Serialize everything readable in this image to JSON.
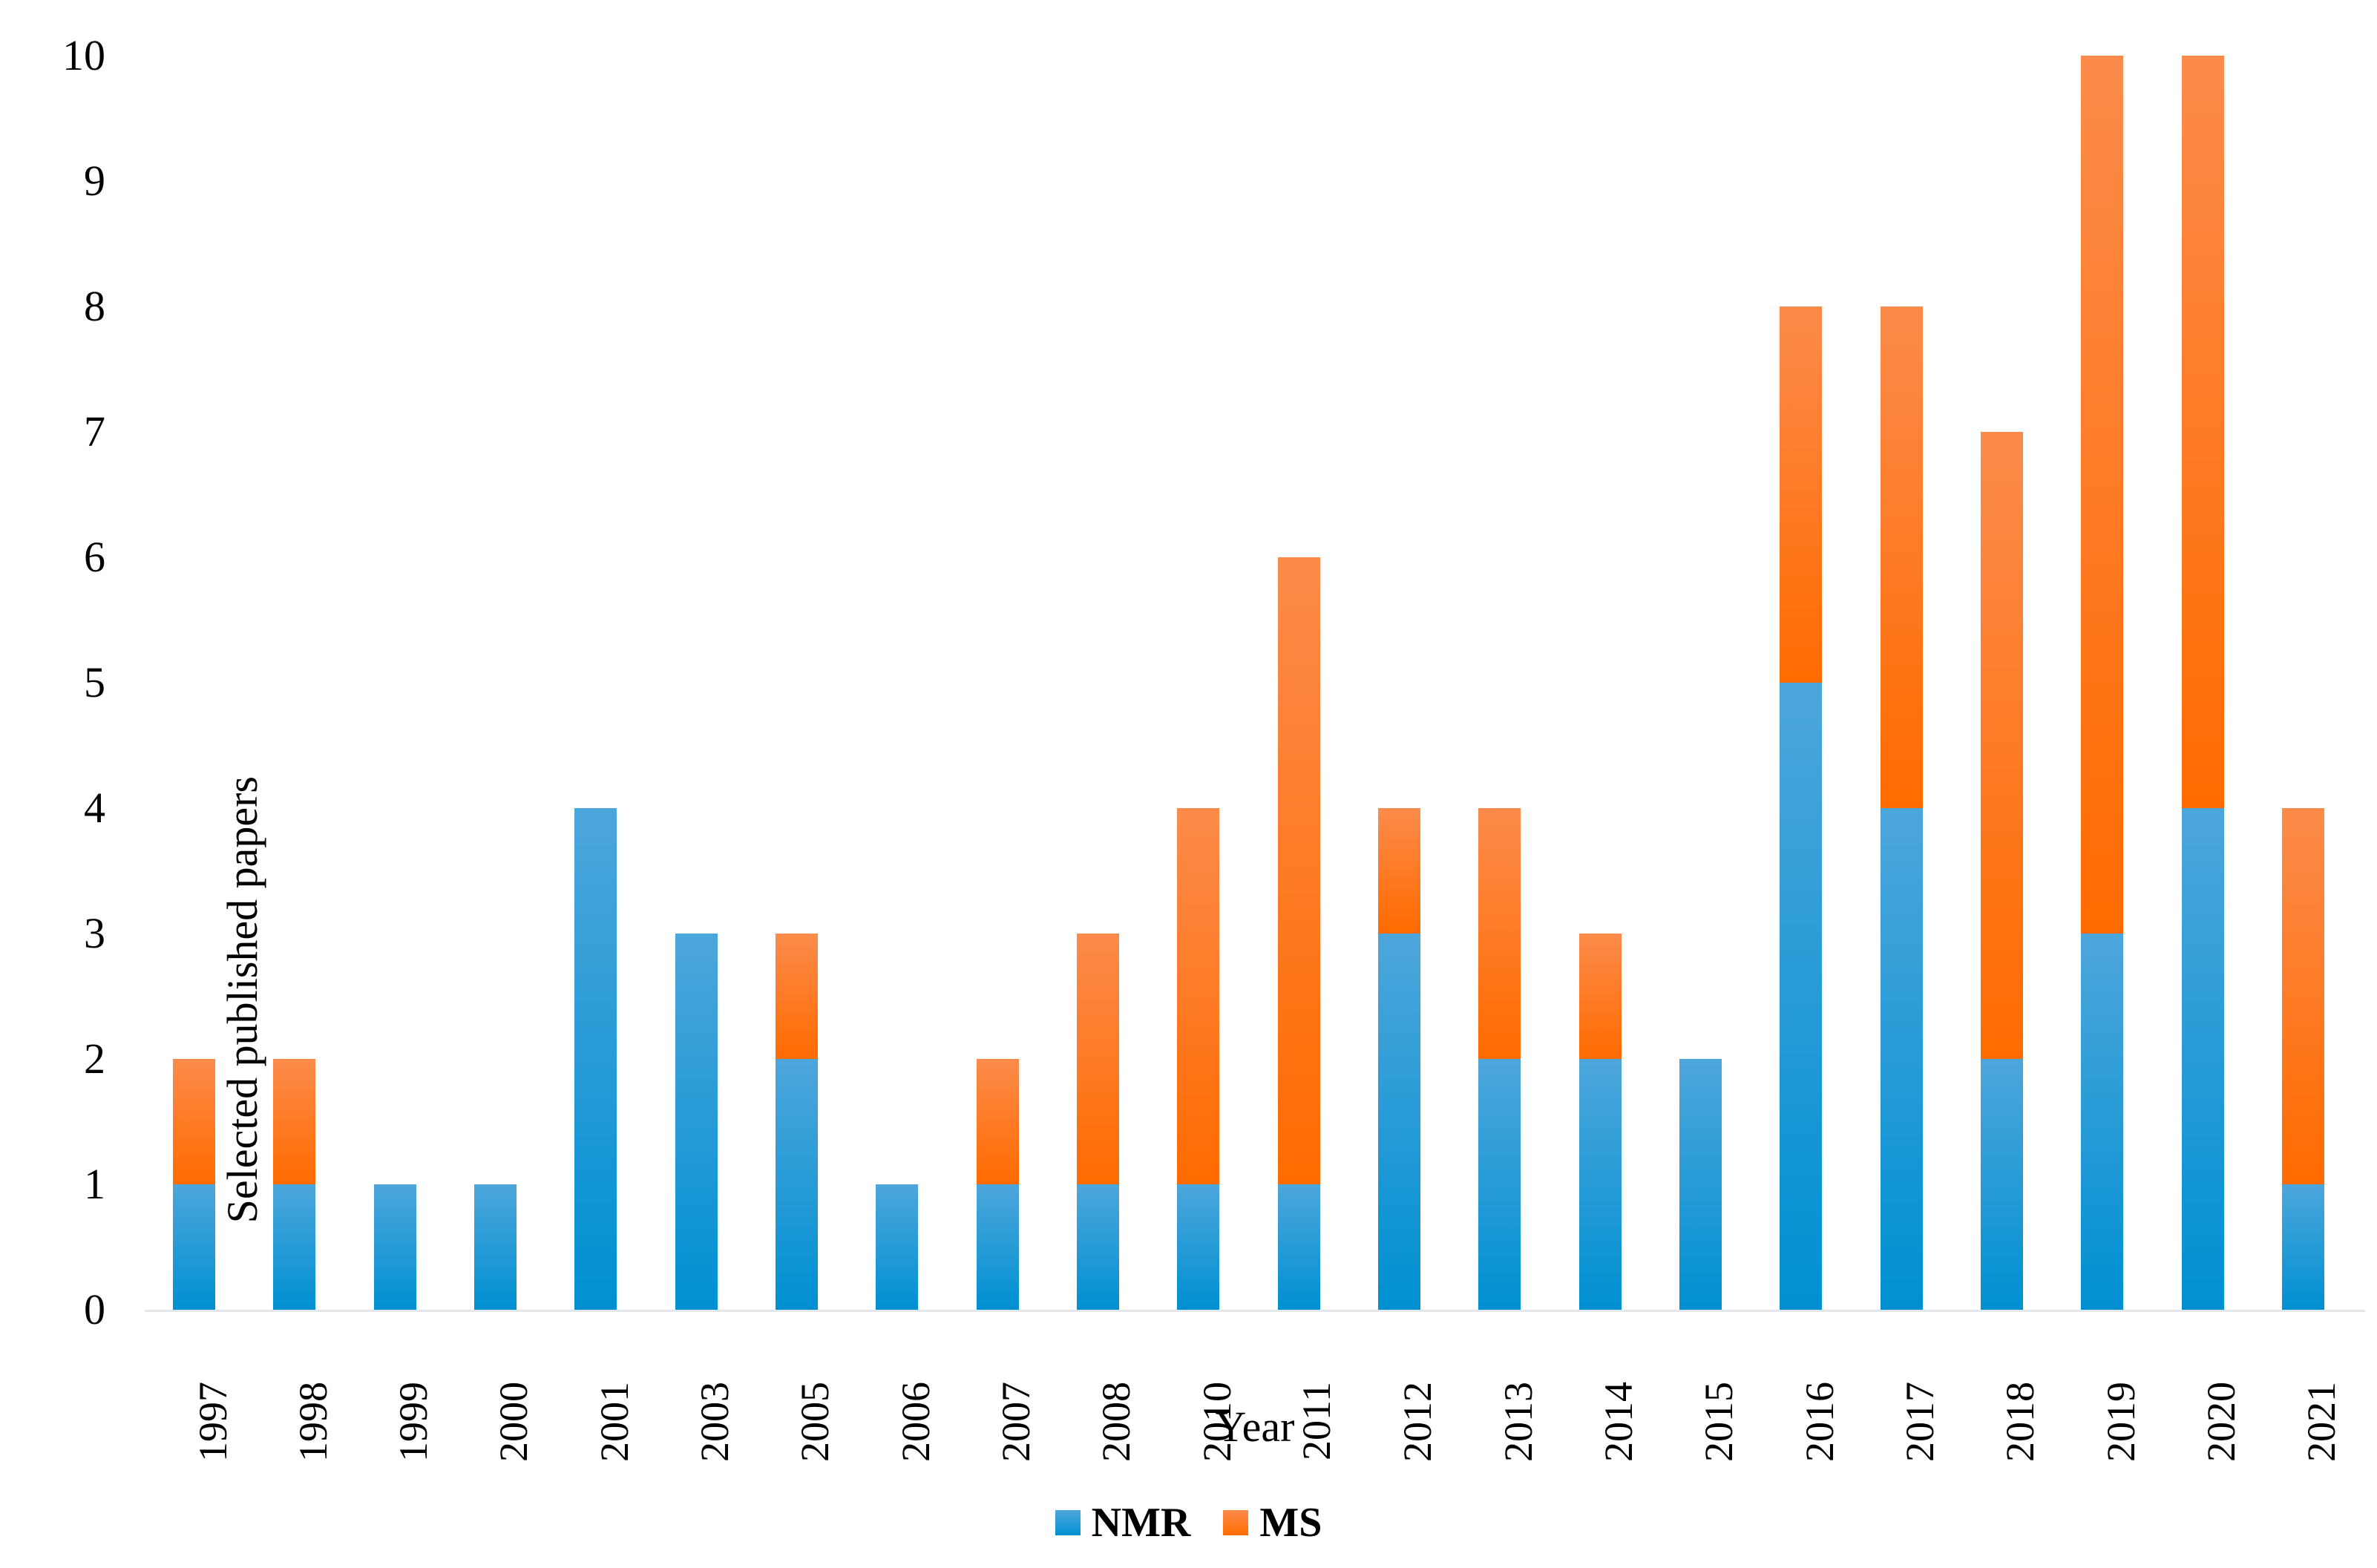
{
  "chart_data": {
    "type": "bar",
    "stacked": true,
    "title": "",
    "xlabel": "Year",
    "ylabel": "Selected published papers",
    "categories": [
      "1997",
      "1998",
      "1999",
      "2000",
      "2001",
      "2003",
      "2005",
      "2006",
      "2007",
      "2008",
      "2010",
      "2011",
      "2012",
      "2013",
      "2014",
      "2015",
      "2016",
      "2017",
      "2018",
      "2019",
      "2020",
      "2021"
    ],
    "series": [
      {
        "name": "NMR",
        "values": [
          1,
          1,
          1,
          1,
          4,
          3,
          2,
          1,
          1,
          1,
          1,
          1,
          3,
          2,
          2,
          2,
          5,
          4,
          2,
          3,
          4,
          1
        ],
        "gradient_top": "#4DA6DB",
        "gradient_bottom": "#0090D2"
      },
      {
        "name": "MS",
        "values": [
          1,
          1,
          0,
          0,
          0,
          0,
          1,
          0,
          1,
          2,
          3,
          5,
          1,
          2,
          1,
          0,
          3,
          4,
          5,
          7,
          6,
          3
        ],
        "gradient_top": "#FC8B4B",
        "gradient_bottom": "#FF6B00"
      }
    ],
    "ylim": [
      0,
      10
    ],
    "yticks": [
      "0",
      "1",
      "2",
      "3",
      "4",
      "5",
      "6",
      "7",
      "8",
      "9",
      "10"
    ],
    "grid": false,
    "legend_position": "bottom",
    "axis_line_color": "#E2E7EB",
    "text_color": "#000000",
    "background": "#FFFFFF"
  }
}
